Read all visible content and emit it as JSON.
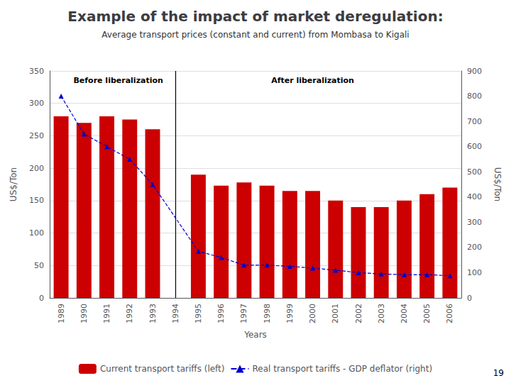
{
  "chart_data": {
    "type": "bar",
    "title": "Example of the impact of market deregulation:",
    "subtitle": "Average transport prices (constant and current) from Mombasa to Kigali",
    "xlabel": "Years",
    "ylabel": "US$/Ton",
    "y2label": "US$/Ton",
    "categories": [
      "1989",
      "1990",
      "1991",
      "1992",
      "1993",
      "1994",
      "1995",
      "1996",
      "1997",
      "1998",
      "1999",
      "2000",
      "2001",
      "2002",
      "2003",
      "2004",
      "2005",
      "2006"
    ],
    "series": [
      {
        "name": "Current transport tariffs (left)",
        "type": "bar",
        "color": "#cc0000",
        "values": [
          280,
          270,
          280,
          275,
          260,
          null,
          190,
          173,
          178,
          173,
          165,
          165,
          150,
          140,
          140,
          150,
          160,
          170
        ]
      },
      {
        "name": "Real transport tariffs - GDP deflator (right)",
        "type": "line",
        "axis": "y2",
        "color": "#0000cc",
        "marker": "triangle",
        "line_style": "dashed",
        "values": [
          800,
          650,
          600,
          550,
          450,
          null,
          185,
          160,
          130,
          130,
          125,
          118,
          110,
          100,
          95,
          92,
          92,
          88
        ]
      }
    ],
    "ylim": [
      0,
      350
    ],
    "yticks": [
      0,
      50,
      100,
      150,
      200,
      250,
      300,
      350
    ],
    "y2lim": [
      0,
      900
    ],
    "y2ticks": [
      0,
      100,
      200,
      300,
      400,
      500,
      600,
      700,
      800,
      900
    ],
    "divider": "1994",
    "annotations": [
      "Before liberalization",
      "After liberalization"
    ],
    "page_number": "19",
    "grid": true,
    "legend": "bottom"
  }
}
